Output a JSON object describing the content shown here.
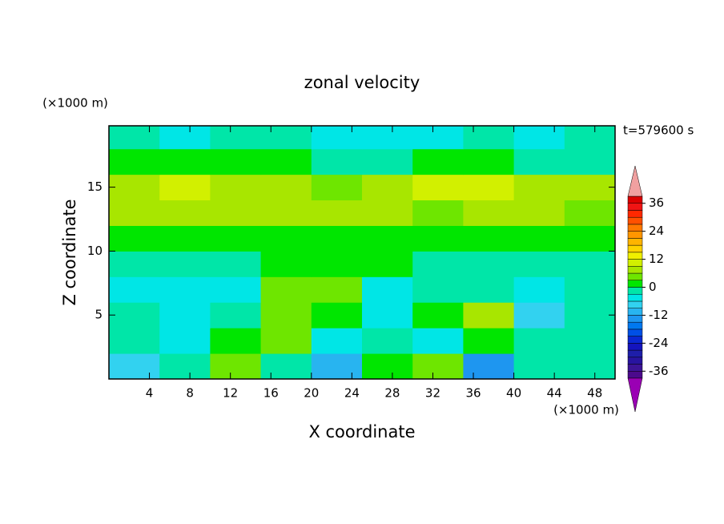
{
  "chart_data": {
    "type": "contour",
    "title": "zonal velocity",
    "xlabel": "X coordinate",
    "ylabel": "Z coordinate",
    "x_unit": "(×1000 m)",
    "y_unit": "(×1000 m)",
    "time_label": "t=579600 s",
    "xlim": [
      0,
      50
    ],
    "ylim": [
      0,
      19.8
    ],
    "xticks": [
      4,
      8,
      12,
      16,
      20,
      24,
      28,
      32,
      36,
      40,
      44,
      48
    ],
    "yticks": [
      5,
      10,
      15
    ],
    "x_edges": [
      0,
      5,
      10,
      15,
      20,
      25,
      30,
      35,
      40,
      45,
      50
    ],
    "z_edges": [
      0,
      2,
      4,
      6,
      8,
      10,
      12,
      14,
      16,
      18,
      19.8
    ],
    "values": [
      [
        -9,
        -2,
        3,
        -2,
        -11,
        1,
        4,
        -14,
        -2,
        -3
      ],
      [
        -3,
        -4,
        2,
        4,
        -5,
        -2,
        -4,
        2,
        -2,
        -3
      ],
      [
        -2,
        -4,
        -3,
        4,
        1,
        -5,
        0,
        6,
        -9,
        -2
      ],
      [
        -4,
        -5,
        -4,
        4,
        5,
        -4,
        -3,
        -2,
        -5,
        -3
      ],
      [
        -3,
        -2,
        -2,
        0,
        1,
        0,
        -2,
        -1,
        -3,
        -2
      ],
      [
        1,
        2,
        1,
        2,
        1,
        2,
        1,
        2,
        1,
        2
      ],
      [
        6,
        7,
        8,
        8,
        7,
        7,
        5,
        6,
        6,
        5
      ],
      [
        6,
        9,
        8,
        7,
        5,
        7,
        10,
        11,
        8,
        6
      ],
      [
        2,
        1,
        2,
        2,
        -1,
        -2,
        1,
        2,
        -2,
        -3
      ],
      [
        -3,
        -4,
        -2,
        -3,
        -4,
        -5,
        -4,
        -3,
        -4,
        -2
      ]
    ],
    "colorbar": {
      "levels": [
        -39,
        -36,
        -33,
        -30,
        -27,
        -24,
        -21,
        -18,
        -15,
        -12,
        -9,
        -6,
        -3,
        0,
        3,
        6,
        9,
        12,
        15,
        18,
        21,
        24,
        27,
        30,
        33,
        36,
        39
      ],
      "ticks": [
        -36,
        -24,
        -12,
        0,
        12,
        24,
        36
      ],
      "colors": [
        "#4b0a8c",
        "#3c1496",
        "#2814a0",
        "#1e1eaa",
        "#1414be",
        "#0a28d2",
        "#0050e6",
        "#0078f0",
        "#1e96f0",
        "#28b4f0",
        "#32d2f0",
        "#00e6e6",
        "#00e6a8",
        "#00e600",
        "#6ee600",
        "#a8e600",
        "#d2f000",
        "#f0f000",
        "#ffd200",
        "#ffb400",
        "#ff9600",
        "#ff7800",
        "#ff5000",
        "#ff2800",
        "#f01414",
        "#dc0000"
      ],
      "under_color": "#9a00b4",
      "over_color": "#f0a0a0"
    }
  }
}
